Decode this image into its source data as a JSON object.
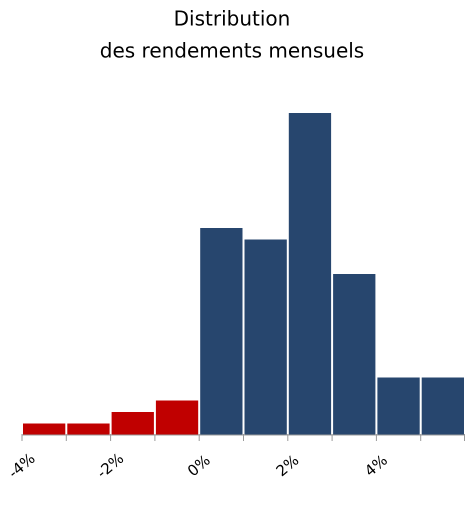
{
  "chart_data": {
    "type": "histogram",
    "title": [
      "Distribution",
      "des rendements mensuels"
    ],
    "bins": [
      -4,
      -3,
      -2,
      -1,
      0,
      1,
      2,
      3,
      4,
      5,
      6
    ],
    "values": [
      1,
      1,
      2,
      3,
      18,
      17,
      28,
      14,
      5,
      5
    ],
    "colors": [
      "#c00000",
      "#c00000",
      "#c00000",
      "#c00000",
      "#27466e",
      "#27466e",
      "#27466e",
      "#27466e",
      "#27466e",
      "#27466e"
    ],
    "xlim": [
      -4,
      6
    ],
    "xticks": [
      {
        "value": -4,
        "label": "-4%"
      },
      {
        "value": -2,
        "label": "-2%"
      },
      {
        "value": 0,
        "label": "0%"
      },
      {
        "value": 2,
        "label": "2%"
      },
      {
        "value": 4,
        "label": "4%"
      }
    ],
    "ylim": [
      0,
      28
    ]
  }
}
